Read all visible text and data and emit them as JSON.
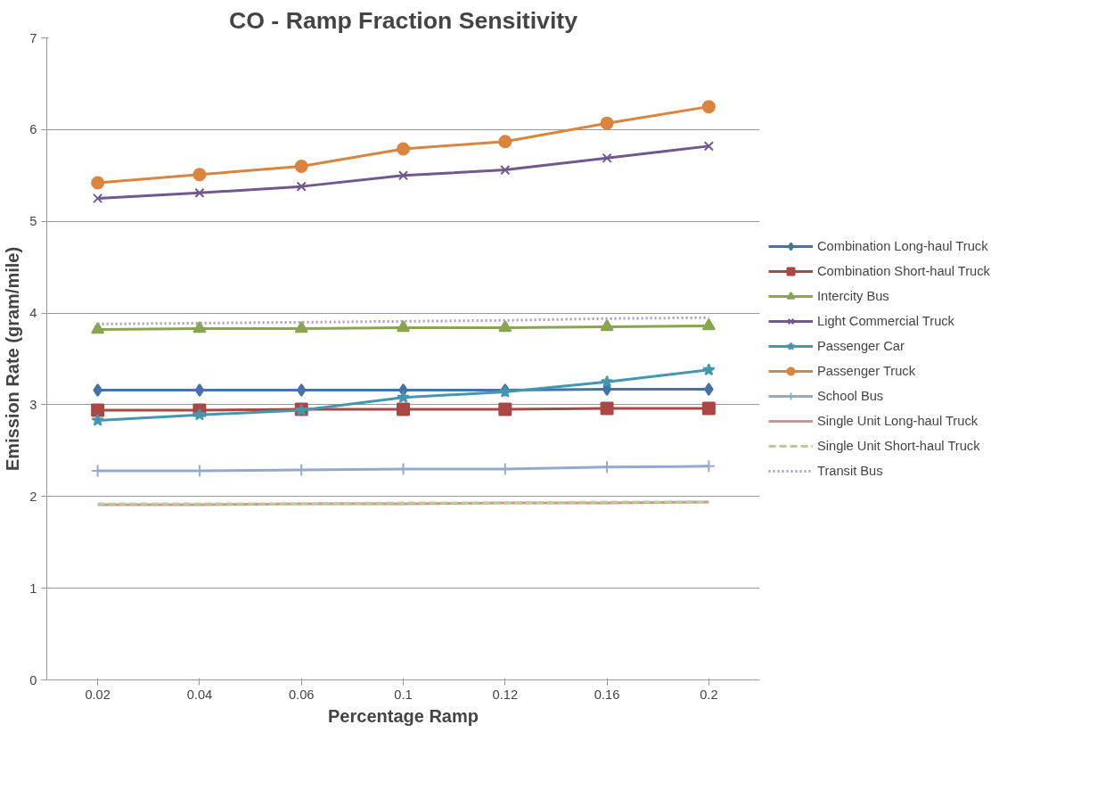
{
  "chart_data": {
    "type": "line",
    "title": "CO - Ramp Fraction Sensitivity",
    "xlabel": "Percentage Ramp",
    "ylabel": "Emission Rate (gram/mile)",
    "categories": [
      "0.02",
      "0.04",
      "0.06",
      "0.1",
      "0.12",
      "0.16",
      "0.2"
    ],
    "ylim": [
      0,
      7
    ],
    "yticks": [
      0,
      1,
      2,
      3,
      4,
      5,
      6,
      7
    ],
    "grid": "y",
    "legend": "right",
    "series": [
      {
        "name": "Combination Long-haul Truck",
        "color": "#4572a7",
        "marker": "diamond",
        "line_style": "solid",
        "values": [
          3.16,
          3.16,
          3.16,
          3.16,
          3.16,
          3.17,
          3.17
        ]
      },
      {
        "name": "Combination Short-haul Truck",
        "color": "#aa4643",
        "marker": "square",
        "line_style": "solid",
        "values": [
          2.94,
          2.94,
          2.95,
          2.95,
          2.95,
          2.96,
          2.96
        ]
      },
      {
        "name": "Intercity Bus",
        "color": "#89a54e",
        "marker": "triangle",
        "line_style": "solid",
        "values": [
          3.82,
          3.83,
          3.83,
          3.84,
          3.84,
          3.85,
          3.86
        ]
      },
      {
        "name": "Light Commercial Truck",
        "color": "#71588f",
        "marker": "cross",
        "line_style": "solid",
        "values": [
          5.25,
          5.31,
          5.38,
          5.5,
          5.56,
          5.69,
          5.82
        ]
      },
      {
        "name": "Passenger Car",
        "color": "#4198af",
        "marker": "star",
        "line_style": "solid",
        "values": [
          2.83,
          2.89,
          2.94,
          3.08,
          3.14,
          3.25,
          3.38
        ]
      },
      {
        "name": "Passenger Truck",
        "color": "#db843d",
        "marker": "circle",
        "line_style": "solid",
        "values": [
          5.42,
          5.51,
          5.6,
          5.79,
          5.87,
          6.07,
          6.25
        ]
      },
      {
        "name": "School Bus",
        "color": "#93a9cf",
        "marker": "plus",
        "line_style": "solid",
        "values": [
          2.28,
          2.28,
          2.29,
          2.3,
          2.3,
          2.32,
          2.33
        ]
      },
      {
        "name": "Single Unit Long-haul Truck",
        "color": "#d19392",
        "marker": "none",
        "line_style": "solid",
        "values": [
          1.91,
          1.91,
          1.92,
          1.92,
          1.93,
          1.93,
          1.94
        ]
      },
      {
        "name": "Single Unit Short-haul Truck",
        "color": "#b9cd96",
        "marker": "none",
        "line_style": "dashed",
        "values": [
          1.92,
          1.92,
          1.92,
          1.93,
          1.93,
          1.94,
          1.94
        ]
      },
      {
        "name": "Transit Bus",
        "color": "#a99bbd",
        "marker": "none",
        "line_style": "dotted",
        "values": [
          3.88,
          3.89,
          3.9,
          3.91,
          3.92,
          3.94,
          3.95
        ]
      }
    ]
  }
}
